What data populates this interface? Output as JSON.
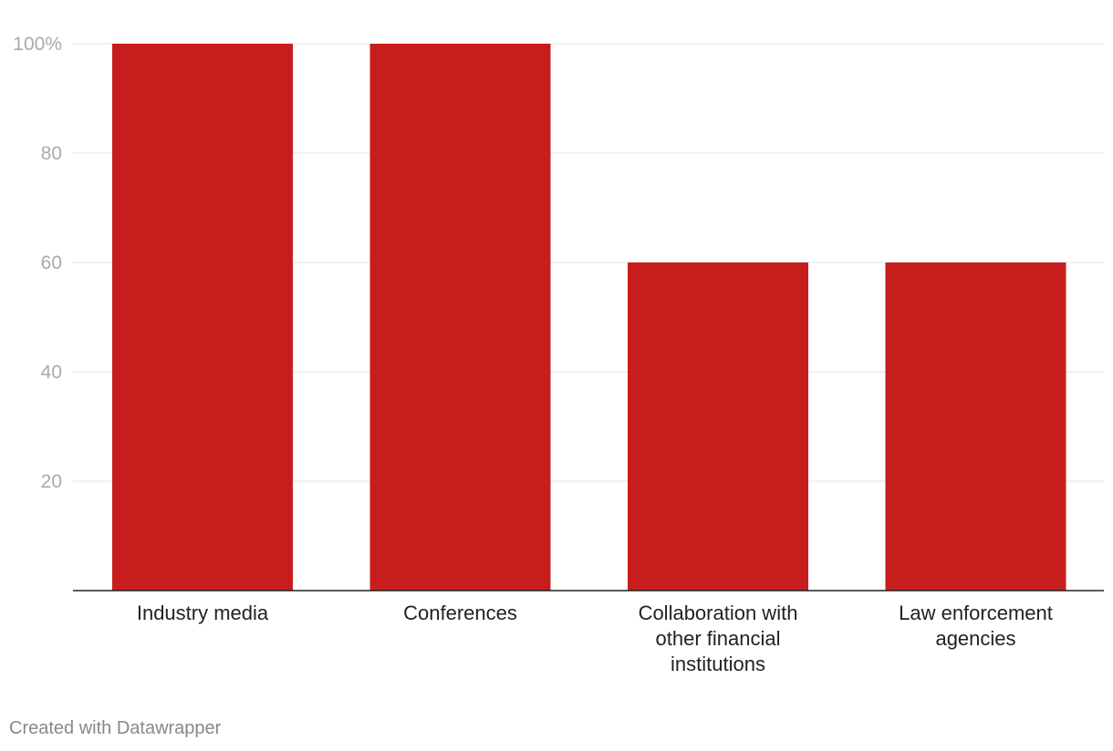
{
  "chart_data": {
    "type": "bar",
    "categories": [
      [
        "Industry media"
      ],
      [
        "Conferences"
      ],
      [
        "Collaboration with",
        "other financial",
        "institutions"
      ],
      [
        "Law enforcement",
        "agencies"
      ]
    ],
    "values": [
      100,
      100,
      60,
      60
    ],
    "ylim": [
      0,
      100
    ],
    "yticks": [
      20,
      40,
      60,
      80,
      100
    ],
    "ytick_labels": [
      "20",
      "40",
      "60",
      "80",
      "100%"
    ],
    "bar_color": "#c71e1d",
    "grid": true
  },
  "footer": {
    "credit": "Created with Datawrapper"
  }
}
